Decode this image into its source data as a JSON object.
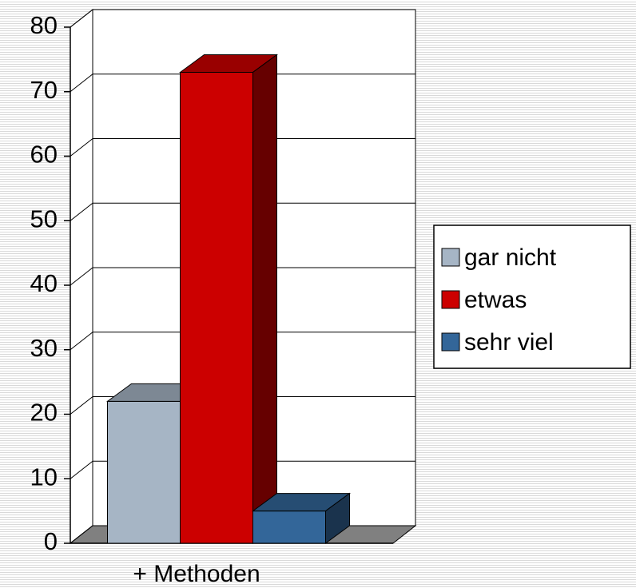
{
  "chart_data": {
    "type": "bar3d",
    "categories": [
      "+ Methoden"
    ],
    "series": [
      {
        "name": "gar nicht",
        "color": "#a6b5c5",
        "values": [
          22
        ]
      },
      {
        "name": "etwas",
        "color": "#cc0000",
        "values": [
          73
        ]
      },
      {
        "name": "sehr viel",
        "color": "#336699",
        "values": [
          5
        ]
      }
    ],
    "ylim": [
      0,
      80
    ],
    "yticks": [
      0,
      10,
      20,
      30,
      40,
      50,
      60,
      70,
      80
    ],
    "grid": true,
    "legend": "right"
  }
}
